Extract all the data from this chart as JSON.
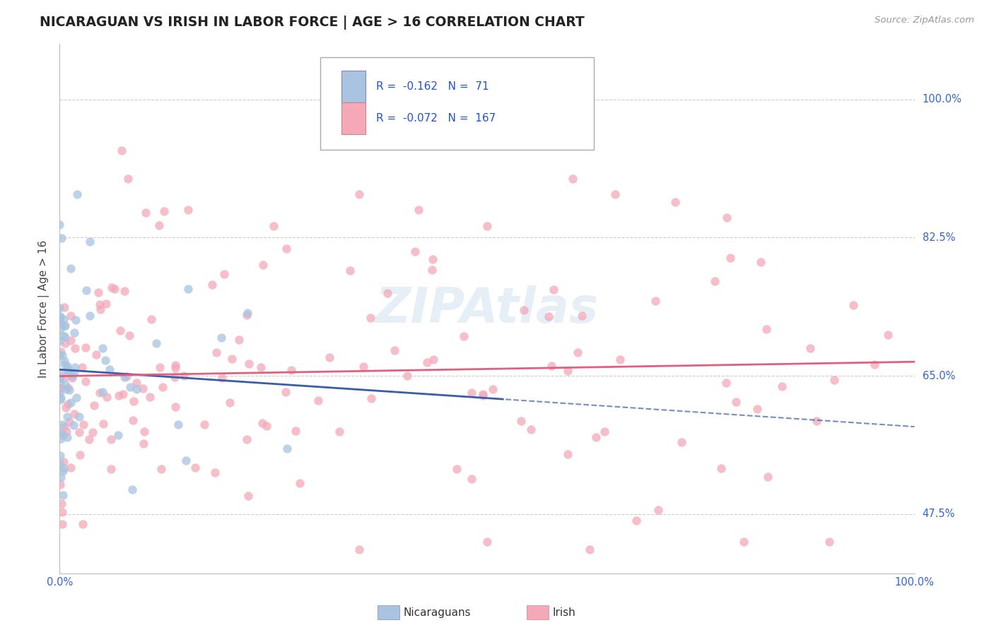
{
  "title": "NICARAGUAN VS IRISH IN LABOR FORCE | AGE > 16 CORRELATION CHART",
  "source_text": "Source: ZipAtlas.com",
  "ylabel": "In Labor Force | Age > 16",
  "xlim": [
    0.0,
    1.0
  ],
  "ylim": [
    0.4,
    1.07
  ],
  "r_nicaraguan": -0.162,
  "n_nicaraguan": 71,
  "r_irish": -0.072,
  "n_irish": 167,
  "nicaraguan_color": "#a8c4e0",
  "irish_color": "#f4a8b8",
  "trend_nicaraguan_color": "#3a5daa",
  "trend_irish_color": "#e06080",
  "watermark": "ZIPAtlas",
  "legend_r_color": "#2255cc",
  "right_labels": {
    "0.475": "47.5%",
    "0.65": "65.0%",
    "0.825": "82.5%",
    "1.0": "100.0%"
  },
  "hlines": [
    0.475,
    0.65,
    0.825,
    1.0
  ],
  "xtick_vals": [
    0.0,
    0.1,
    0.2,
    0.3,
    0.4,
    0.5,
    0.6,
    0.7,
    0.8,
    0.9,
    1.0
  ],
  "xtick_labels": [
    "0.0%",
    "",
    "",
    "",
    "",
    "",
    "",
    "",
    "",
    "",
    "100.0%"
  ]
}
